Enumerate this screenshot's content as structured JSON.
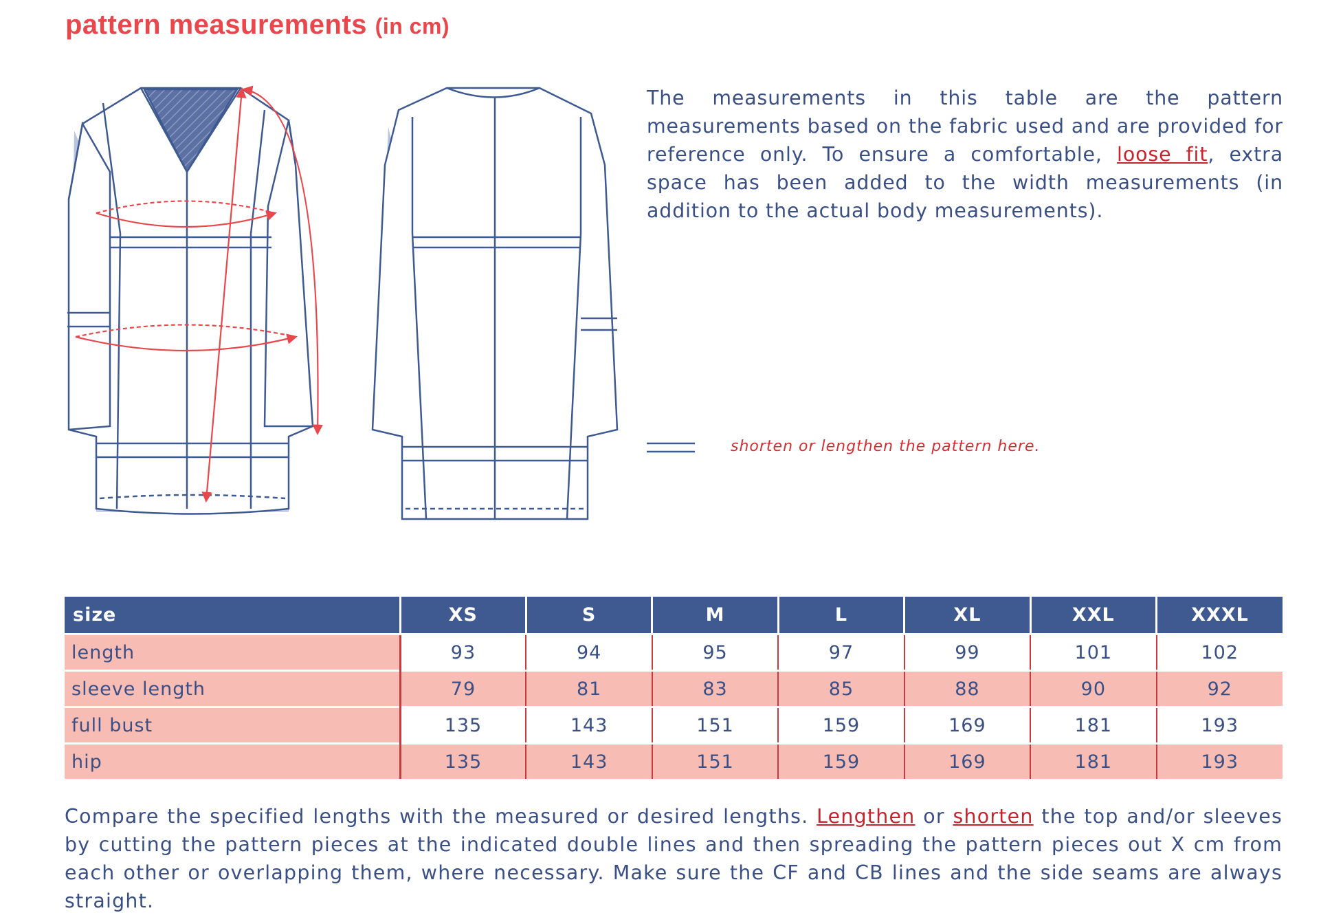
{
  "title": {
    "main": "pattern measurements",
    "unit": "(in cm)"
  },
  "intro": {
    "before_link": "The measurements in this table are the pattern measurements based on the fabric used and are provided for reference only. To ensure a comfortable, ",
    "link": "loose fit",
    "after_link": ", extra space has been added to the width measurements (in addition to the actual body measurements)."
  },
  "legend": {
    "text": "shorten or lengthen the pattern here."
  },
  "table": {
    "header_label": "size",
    "sizes": [
      "XS",
      "S",
      "M",
      "L",
      "XL",
      "XXL",
      "XXXL"
    ],
    "rows": [
      {
        "label": "length",
        "values": [
          "93",
          "94",
          "95",
          "97",
          "99",
          "101",
          "102"
        ]
      },
      {
        "label": "sleeve length",
        "values": [
          "79",
          "81",
          "83",
          "85",
          "88",
          "90",
          "92"
        ]
      },
      {
        "label": "full bust",
        "values": [
          "135",
          "143",
          "151",
          "159",
          "169",
          "181",
          "193"
        ]
      },
      {
        "label": "hip",
        "values": [
          "135",
          "143",
          "151",
          "159",
          "169",
          "181",
          "193"
        ]
      }
    ]
  },
  "footer": {
    "part1": "Compare the specified lengths with the measured or desired lengths. ",
    "link1": "Lengthen",
    "part2": " or ",
    "link2": "shorten",
    "part3": " the top and/or sleeves by cutting the pattern pieces at the indicated double lines and then spreading the pattern pieces out X cm from each other or overlapping them, where necessary. Make sure the CF and CB lines and the side seams are always straight."
  },
  "colors": {
    "title": "#e8474c",
    "text": "#3a4f86",
    "header_bg": "#3f5a91",
    "pink_row": "#f7bcb3",
    "link": "#c8232c"
  }
}
